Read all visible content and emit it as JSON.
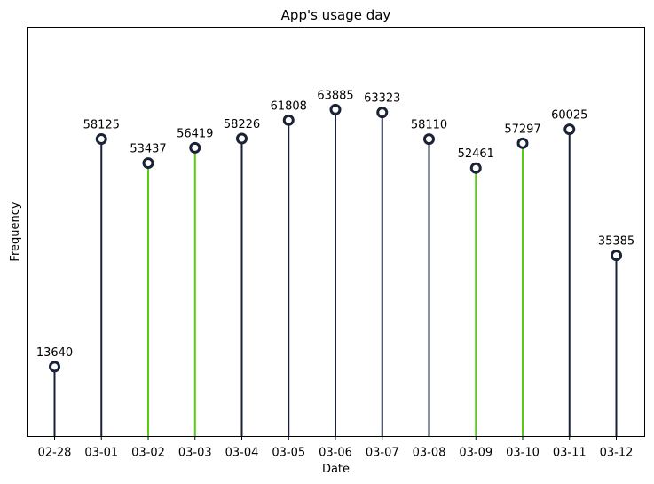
{
  "chart_data": {
    "type": "lollipop",
    "title": "App's usage day",
    "xlabel": "Date",
    "ylabel": "Frequency",
    "categories": [
      "02-28",
      "03-01",
      "03-02",
      "03-03",
      "03-04",
      "03-05",
      "03-06",
      "03-07",
      "03-08",
      "03-09",
      "03-10",
      "03-11",
      "03-12"
    ],
    "values": [
      13640,
      58125,
      53437,
      56419,
      58226,
      61808,
      63885,
      63323,
      58110,
      52461,
      57297,
      60025,
      35385
    ],
    "data_labels": [
      "13640",
      "58125",
      "53437",
      "56419",
      "58226",
      "61808",
      "63885",
      "63323",
      "58110",
      "52461",
      "57297",
      "60025",
      "35385"
    ],
    "stem_colors": [
      "#1a2238",
      "#1a2238",
      "#56cc12",
      "#56cc12",
      "#1a2238",
      "#1a2238",
      "#1a2238",
      "#1a2238",
      "#1a2238",
      "#56cc12",
      "#56cc12",
      "#1a2238",
      "#1a2238"
    ],
    "marker_color": "#1a2238",
    "ylim": [
      0,
      80000
    ],
    "grid": false,
    "y_ticks_visible": false
  }
}
